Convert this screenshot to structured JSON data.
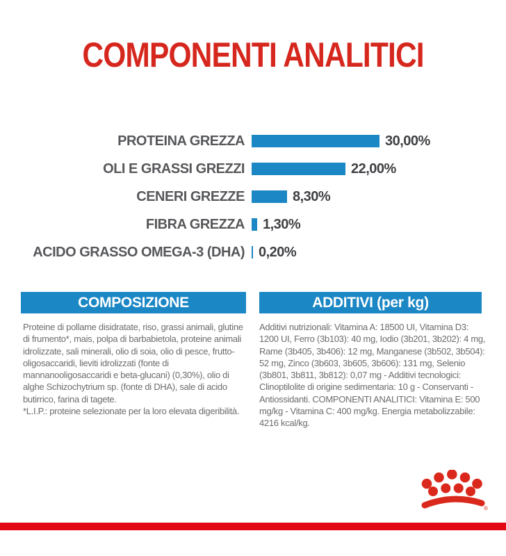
{
  "page": {
    "title": "COMPONENTI ANALITICI"
  },
  "colors": {
    "red": "#d6271e",
    "bar_red": "#e30613",
    "blue": "#1b87c5",
    "label_gray": "#56575a",
    "value_gray": "#3f4043",
    "body_gray": "#6b6c6e"
  },
  "chart_data": {
    "type": "bar",
    "orientation": "horizontal",
    "title": "COMPONENTI ANALITICI",
    "categories": [
      "PROTEINA GREZZA",
      "OLI E GRASSI GREZZI",
      "CENERI GREZZE",
      "FIBRA GREZZA",
      "ACIDO GRASSO OMEGA-3 (DHA)"
    ],
    "values": [
      30.0,
      22.0,
      8.3,
      1.3,
      0.2
    ],
    "value_labels": [
      "30,00%",
      "22,00%",
      "8,30%",
      "1,30%",
      "0,20%"
    ],
    "unit": "%",
    "bar_color": "#1b87c5",
    "xlim": [
      0,
      30
    ],
    "grid": false,
    "legend": false
  },
  "sections": {
    "composizione": {
      "header": "COMPOSIZIONE",
      "body": "Proteine di pollame disidratate, riso, grassi animali, glutine di frumento*, mais, polpa di barbabietola, proteine animali idrolizzate, sali minerali, olio di soia, olio di pesce, frutto-oligosaccaridi, lieviti idrolizzati (fonte di mannanooligosaccaridi e beta-glucani) (0,30%), olio di alghe Schizochytrium sp. (fonte di DHA), sale di acido butirrico, farina di tagete.",
      "footnote": "*L.I.P.: proteine selezionate per la loro elevata digeribilità."
    },
    "additivi": {
      "header": "ADDITIVI (per kg)",
      "body": "Additivi nutrizionali: Vitamina A: 18500 UI, Vitamina D3: 1200 UI, Ferro (3b103): 40 mg, Iodio (3b201, 3b202): 4 mg, Rame (3b405, 3b406): 12 mg, Manganese (3b502, 3b504): 52 mg, Zinco (3b603, 3b605, 3b606): 131 mg, Selenio (3b801, 3b811, 3b812): 0,07 mg - Additivi tecnologici: Clinoptilolite di origine sedimentaria: 10 g - Conservanti - Antiossidanti. COMPONENTI ANALITICI: Vitamina E: 500 mg/kg - Vitamina C: 400 mg/kg. Energia metabolizzabile: 4216 kcal/kg."
    }
  },
  "logo": {
    "name": "royal-canin-crown",
    "registered_mark": "®"
  }
}
